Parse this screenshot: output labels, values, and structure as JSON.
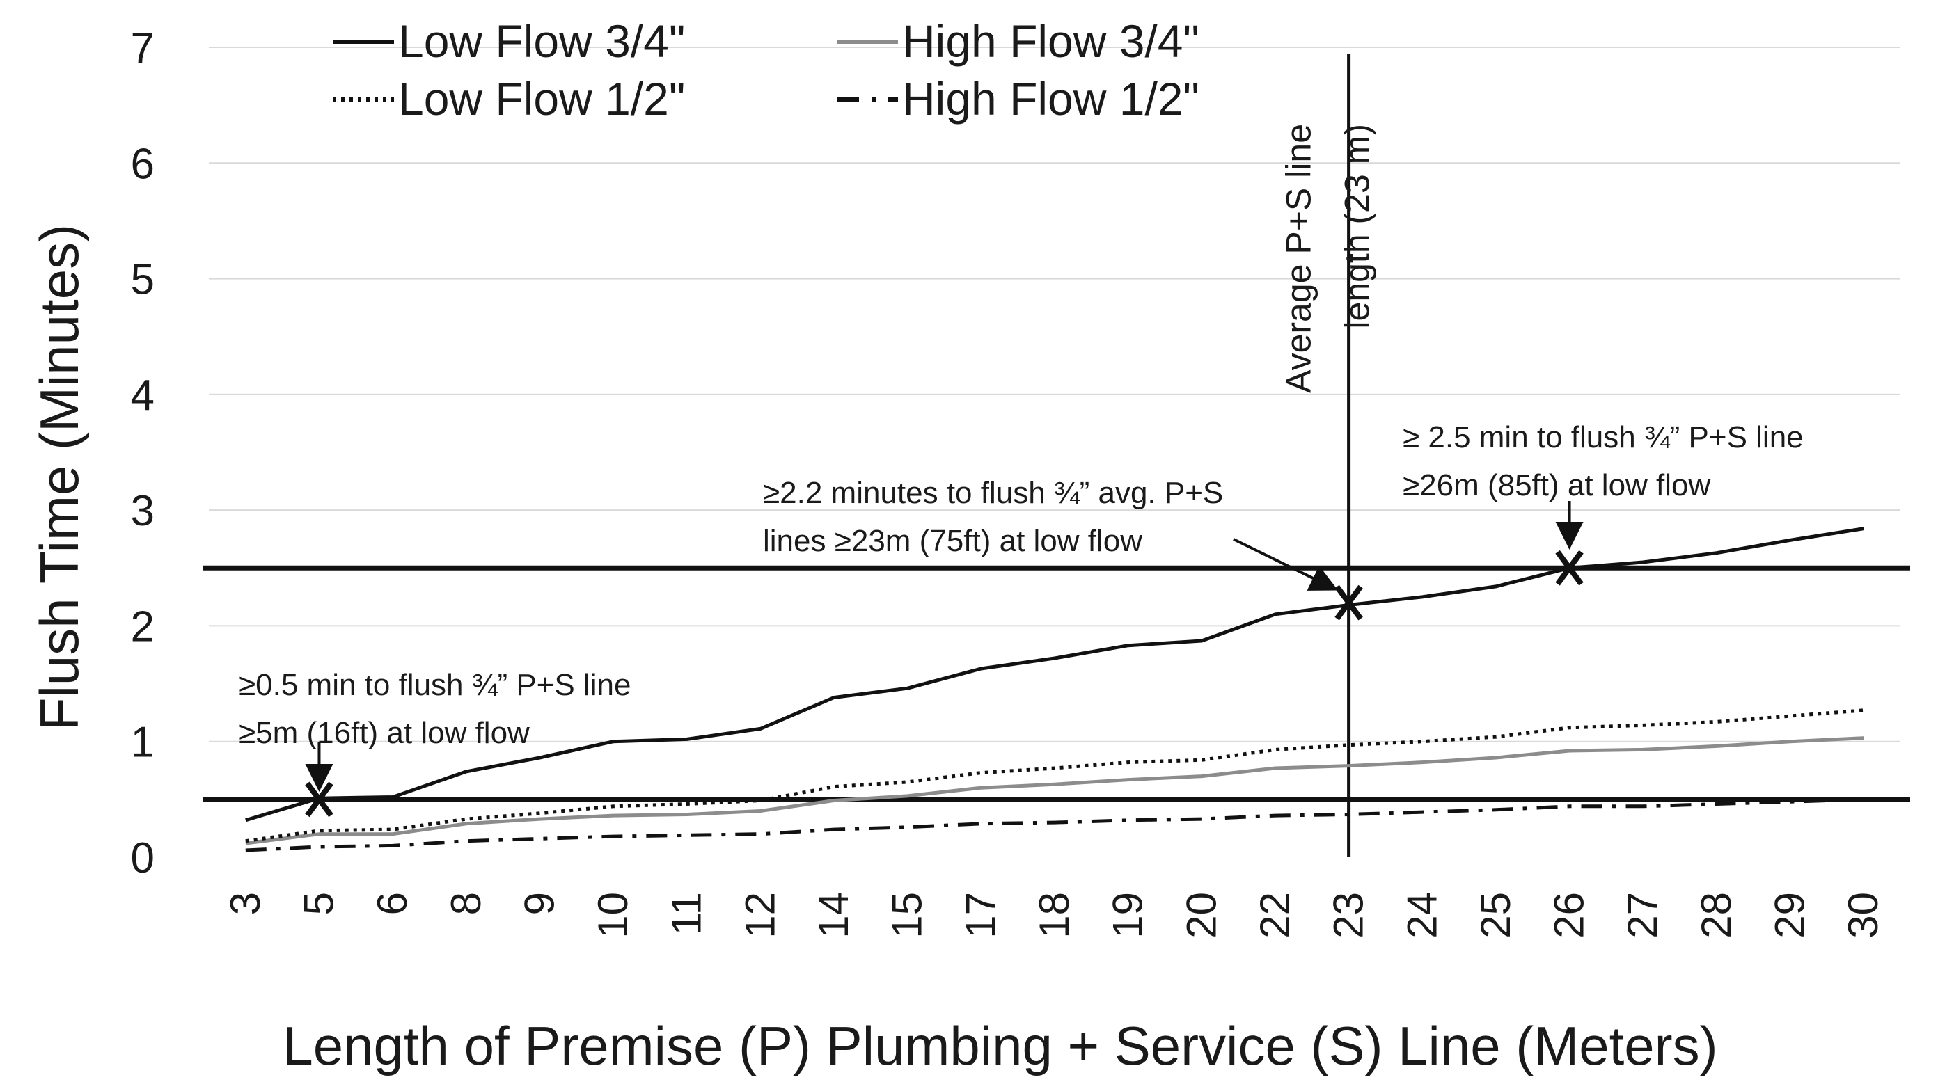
{
  "chart_data": {
    "type": "line",
    "title": "",
    "xlabel": "Length of Premise (P) Plumbing + Service (S) Line (Meters)",
    "ylabel": "Flush Time (Minutes)",
    "ylim": [
      0,
      7
    ],
    "yticks": [
      0,
      1,
      2,
      3,
      4,
      5,
      6,
      7
    ],
    "grid": true,
    "legend_position": "top-left",
    "categories": [
      "3",
      "5",
      "6",
      "8",
      "9",
      "10",
      "11",
      "12",
      "14",
      "15",
      "17",
      "18",
      "19",
      "20",
      "22",
      "23",
      "24",
      "25",
      "26",
      "27",
      "28",
      "29",
      "30"
    ],
    "series": [
      {
        "name": "Low Flow 3/4\"",
        "color": "#111111",
        "dash": "solid",
        "values": [
          0.32,
          0.51,
          0.52,
          0.74,
          0.86,
          1.0,
          1.02,
          1.11,
          1.38,
          1.46,
          1.63,
          1.72,
          1.83,
          1.87,
          2.1,
          2.18,
          2.25,
          2.34,
          2.5,
          2.55,
          2.63,
          2.74,
          2.84
        ]
      },
      {
        "name": "High Flow 3/4\"",
        "color": "#8c8c8c",
        "dash": "solid",
        "values": [
          0.12,
          0.2,
          0.2,
          0.29,
          0.33,
          0.36,
          0.37,
          0.4,
          0.49,
          0.53,
          0.6,
          0.63,
          0.67,
          0.7,
          0.77,
          0.79,
          0.82,
          0.86,
          0.92,
          0.93,
          0.96,
          1.0,
          1.03
        ]
      },
      {
        "name": "Low Flow 1/2\"",
        "color": "#111111",
        "dash": "dotted",
        "values": [
          0.14,
          0.23,
          0.24,
          0.33,
          0.38,
          0.44,
          0.46,
          0.49,
          0.61,
          0.65,
          0.73,
          0.77,
          0.82,
          0.84,
          0.93,
          0.97,
          1.0,
          1.04,
          1.12,
          1.14,
          1.17,
          1.22,
          1.27
        ]
      },
      {
        "name": "High Flow 1/2\"",
        "color": "#111111",
        "dash": "dashdot",
        "values": [
          0.06,
          0.09,
          0.1,
          0.14,
          0.16,
          0.18,
          0.19,
          0.2,
          0.24,
          0.26,
          0.29,
          0.3,
          0.32,
          0.33,
          0.36,
          0.37,
          0.39,
          0.41,
          0.44,
          0.44,
          0.46,
          0.48,
          0.5
        ]
      }
    ],
    "reference_lines": {
      "horizontal": [
        0.5,
        2.5
      ],
      "vertical_category": "23",
      "vertical_label": [
        "Average P+S  line",
        "length (23 m)"
      ]
    },
    "markers": [
      {
        "category": "5",
        "value": 0.5,
        "symbol": "x"
      },
      {
        "category": "23",
        "value": 2.2,
        "symbol": "x"
      },
      {
        "category": "26",
        "value": 2.5,
        "symbol": "x"
      }
    ],
    "annotations": [
      {
        "lines": [
          "≥0.5 min to flush ¾” P+S line",
          "≥5m (16ft) at low flow"
        ],
        "target_category": "5"
      },
      {
        "lines": [
          "≥2.2 minutes to flush ¾” avg. P+S",
          "lines ≥23m (75ft) at low flow"
        ],
        "target_category": "23"
      },
      {
        "lines": [
          "≥ 2.5 min to flush ¾” P+S line",
          "≥26m (85ft) at low flow"
        ],
        "target_category": "26"
      }
    ]
  }
}
